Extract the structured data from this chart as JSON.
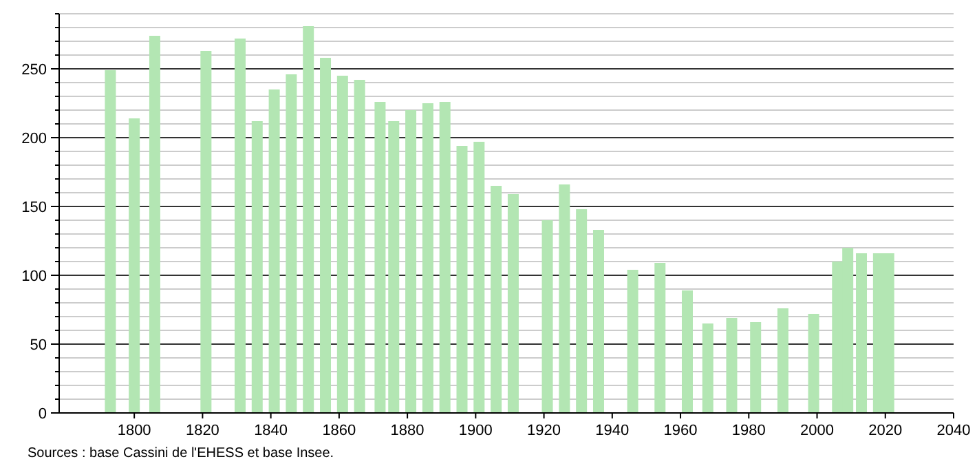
{
  "chart_data": {
    "type": "bar",
    "x": [
      1793,
      1800,
      1806,
      1821,
      1831,
      1836,
      1841,
      1846,
      1851,
      1856,
      1861,
      1866,
      1872,
      1876,
      1881,
      1886,
      1891,
      1896,
      1901,
      1906,
      1911,
      1921,
      1926,
      1931,
      1936,
      1946,
      1954,
      1962,
      1968,
      1975,
      1982,
      1990,
      1999,
      2006,
      2009,
      2013,
      2018,
      2021
    ],
    "values": [
      249,
      214,
      274,
      263,
      272,
      212,
      235,
      246,
      281,
      258,
      245,
      242,
      226,
      212,
      220,
      225,
      226,
      194,
      197,
      165,
      159,
      140,
      166,
      148,
      133,
      104,
      109,
      89,
      65,
      69,
      66,
      76,
      72,
      110,
      120,
      116,
      116,
      116
    ],
    "color": "#b3e6b3",
    "xlim": [
      1778,
      2040
    ],
    "xticks": [
      1800,
      1820,
      1840,
      1860,
      1880,
      1900,
      1920,
      1940,
      1960,
      1980,
      2000,
      2020,
      2040
    ],
    "ylim": [
      0,
      290
    ],
    "yticks": [
      0,
      {
        "value": 10,
        "label": null
      },
      {
        "value": 20,
        "label": null
      },
      {
        "value": 30,
        "label": null
      },
      {
        "value": 40,
        "label": null
      },
      50,
      {
        "value": 60,
        "label": null
      },
      {
        "value": 70,
        "label": null
      },
      {
        "value": 80,
        "label": null
      },
      {
        "value": 90,
        "label": null
      },
      100,
      {
        "value": 110,
        "label": null
      },
      {
        "value": 120,
        "label": null
      },
      {
        "value": 130,
        "label": null
      },
      {
        "value": 140,
        "label": null
      },
      150,
      {
        "value": 160,
        "label": null
      },
      {
        "value": 170,
        "label": null
      },
      {
        "value": 180,
        "label": null
      },
      {
        "value": 190,
        "label": null
      },
      200,
      {
        "value": 210,
        "label": null
      },
      {
        "value": 220,
        "label": null
      },
      {
        "value": 230,
        "label": null
      },
      {
        "value": 240,
        "label": null
      },
      250,
      {
        "value": 260,
        "label": null
      },
      {
        "value": 270,
        "label": null
      },
      {
        "value": 280,
        "label": null
      },
      {
        "value": 290,
        "label": null
      }
    ],
    "grid": "y",
    "annotations": [
      "Sources : base Cassini de l'EHESS et base Insee."
    ]
  }
}
